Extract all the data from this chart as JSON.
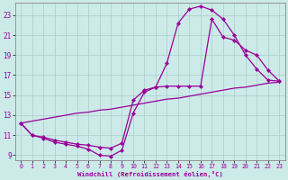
{
  "xlabel": "Windchill (Refroidissement éolien,°C)",
  "bg_color": "#cceae8",
  "grid_color": "#aacccc",
  "line_color": "#990099",
  "xlim": [
    -0.5,
    23.5
  ],
  "ylim": [
    8.5,
    24.2
  ],
  "yticks": [
    9,
    11,
    13,
    15,
    17,
    19,
    21,
    23
  ],
  "xticks": [
    0,
    1,
    2,
    3,
    4,
    5,
    6,
    7,
    8,
    9,
    10,
    11,
    12,
    13,
    14,
    15,
    16,
    17,
    18,
    19,
    20,
    21,
    22,
    23
  ],
  "line1_x": [
    0,
    1,
    2,
    3,
    4,
    5,
    6,
    7,
    8,
    9,
    10,
    11,
    12,
    13,
    14,
    15,
    16,
    17,
    18,
    19,
    20,
    21,
    22,
    23
  ],
  "line1_y": [
    12.2,
    11.0,
    10.7,
    10.3,
    10.1,
    9.9,
    9.6,
    9.0,
    8.9,
    9.5,
    13.2,
    15.3,
    15.8,
    18.2,
    22.2,
    23.6,
    23.9,
    23.5,
    22.6,
    21.0,
    19.0,
    17.6,
    16.5,
    16.4
  ],
  "line2_x": [
    0,
    1,
    2,
    3,
    4,
    5,
    6,
    7,
    8,
    9,
    10,
    11,
    12,
    13,
    14,
    15,
    16,
    17,
    18,
    19,
    20,
    21,
    22,
    23
  ],
  "line2_y": [
    12.2,
    11.0,
    10.8,
    10.5,
    10.3,
    10.1,
    10.0,
    9.8,
    9.7,
    10.2,
    14.5,
    15.5,
    15.8,
    15.9,
    15.9,
    15.9,
    15.9,
    22.6,
    20.8,
    20.5,
    19.5,
    19.0,
    17.5,
    16.4
  ],
  "line3_x": [
    0,
    1,
    2,
    3,
    4,
    5,
    6,
    7,
    8,
    9,
    10,
    11,
    12,
    13,
    14,
    15,
    16,
    17,
    18,
    19,
    20,
    21,
    22,
    23
  ],
  "line3_y": [
    12.2,
    12.4,
    12.6,
    12.8,
    13.0,
    13.2,
    13.3,
    13.5,
    13.6,
    13.8,
    14.0,
    14.2,
    14.4,
    14.6,
    14.7,
    14.9,
    15.1,
    15.3,
    15.5,
    15.7,
    15.8,
    16.0,
    16.2,
    16.3
  ]
}
